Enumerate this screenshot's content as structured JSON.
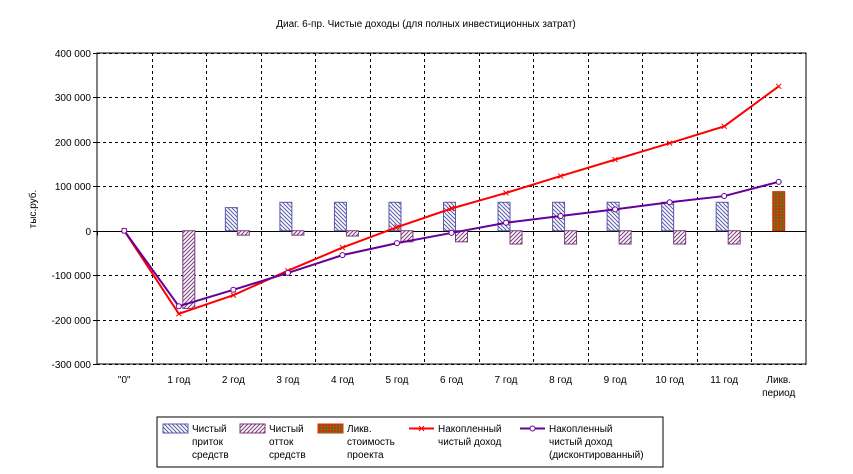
{
  "chart_data": {
    "type": "bar",
    "title": "Диаг. 6-пр. Чистые доходы (для полных инвестиционных затрат)",
    "ylabel": "тыс.руб.",
    "xlabel": "",
    "ylim": [
      -300000,
      400000
    ],
    "yticks": [
      400000,
      300000,
      200000,
      100000,
      0,
      -100000,
      -200000,
      -300000
    ],
    "ytick_labels": [
      "400 000",
      "300 000",
      "200 000",
      "100 000",
      "0",
      "-100 000",
      "-200 000",
      "-300 000"
    ],
    "categories": [
      "\"0\"",
      "1 год",
      "2 год",
      "3 год",
      "4 год",
      "5 год",
      "6 год",
      "7 год",
      "8 год",
      "9 год",
      "10 год",
      "11 год",
      "Ликв. период"
    ],
    "grid": true,
    "legend_position": "bottom",
    "series": [
      {
        "name": "Чистый приток средств",
        "kind": "bar",
        "pattern": "blue-hatch",
        "values": [
          0,
          0,
          52000,
          64000,
          64000,
          64000,
          64000,
          64000,
          64000,
          64000,
          64000,
          64000,
          0
        ]
      },
      {
        "name": "Чистый отток средств",
        "kind": "bar",
        "pattern": "purple-hatch",
        "values": [
          0,
          -175000,
          -10000,
          -10000,
          -12000,
          -25000,
          -25000,
          -30000,
          -30000,
          -30000,
          -30000,
          -30000,
          0
        ]
      },
      {
        "name": "Ликв. стоимость проекта",
        "kind": "bar",
        "pattern": "brick",
        "values": [
          0,
          0,
          0,
          0,
          0,
          0,
          0,
          0,
          0,
          0,
          0,
          0,
          88000
        ]
      },
      {
        "name": "Накопленный чистый доход",
        "kind": "line",
        "color": "#ff0000",
        "marker": "x",
        "values": [
          0,
          -187000,
          -145000,
          -90000,
          -38000,
          8000,
          50000,
          85000,
          123000,
          160000,
          197000,
          235000,
          325000
        ]
      },
      {
        "name": "Накопленный чистый доход (дисконтированный)",
        "kind": "line",
        "color": "#660099",
        "marker": "circle",
        "values": [
          0,
          -170000,
          -133000,
          -95000,
          -55000,
          -28000,
          -5000,
          18000,
          33000,
          48000,
          64000,
          78000,
          110000
        ]
      }
    ],
    "legend_lines": [
      [
        "Чистый",
        "приток",
        "средств"
      ],
      [
        "Чистый",
        "отток",
        "средств"
      ],
      [
        "Ликв.",
        "стоимость",
        "проекта"
      ],
      [
        "Накопленный",
        "чистый доход"
      ],
      [
        "Накопленный",
        "чистый доход",
        "(дисконтированный)"
      ]
    ],
    "colors": {
      "inflow_line": "#5a5aa8",
      "inflow_fill": "#ffffff",
      "outflow_line": "#7a3a7a",
      "liquidation_fill": "#cc3300",
      "liquidation_grid": "#339933",
      "cumulative": "#ff0000",
      "cumulative_discounted": "#660099"
    }
  }
}
